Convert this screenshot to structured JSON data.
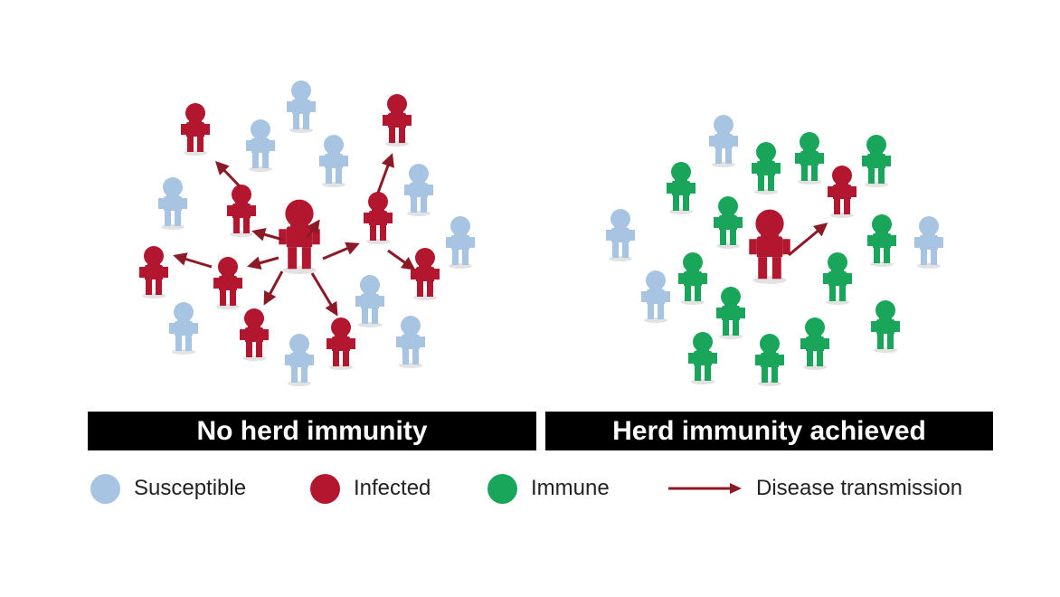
{
  "panels": {
    "left": {
      "label": "No herd immunity"
    },
    "right": {
      "label": "Herd immunity achieved"
    }
  },
  "legend": {
    "susceptible": {
      "label": "Susceptible",
      "color": "#a7c4e3"
    },
    "infected": {
      "label": "Infected",
      "color": "#b3172f"
    },
    "immune": {
      "label": "Immune",
      "color": "#1aa65a"
    },
    "transmission": {
      "label": "Disease transmission",
      "color": "#8b1a26"
    }
  }
}
